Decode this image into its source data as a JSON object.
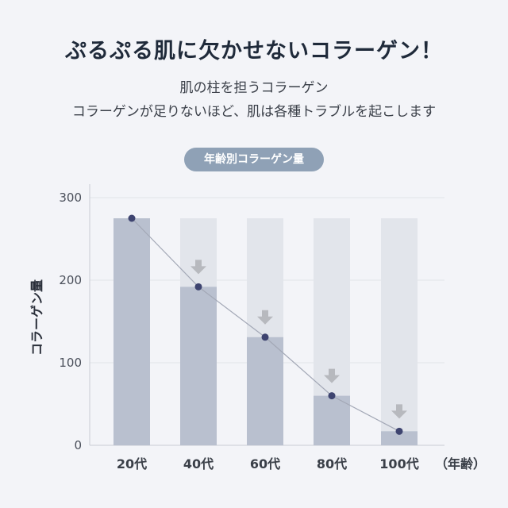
{
  "header": {
    "title": "ぷるぷる肌に欠かせないコラーゲン！",
    "subtitle_line1": "肌の柱を担うコラーゲン",
    "subtitle_line2": "コラーゲンが足りないほど、肌は各種トラブルを起こします"
  },
  "chart_data": {
    "type": "bar",
    "title": "年齢別コラーゲン量",
    "xlabel": "（年齢）",
    "ylabel": "コラーゲン量",
    "categories": [
      "20代",
      "40代",
      "60代",
      "80代",
      "100代"
    ],
    "values": [
      275,
      192,
      131,
      60,
      17
    ],
    "reference_values": [
      275,
      275,
      275,
      275,
      275
    ],
    "ylim": [
      0,
      300
    ],
    "yticks": [
      "0",
      "100",
      "200",
      "300"
    ],
    "line_overlay": true,
    "grid": true,
    "colors": {
      "bar": "#b9c0cf",
      "reference_bar": "#e2e5eb",
      "line": "#a3a8b6",
      "point": "#3e4470",
      "arrow": "#b7b9be",
      "badge": "#8fa1b6"
    }
  }
}
